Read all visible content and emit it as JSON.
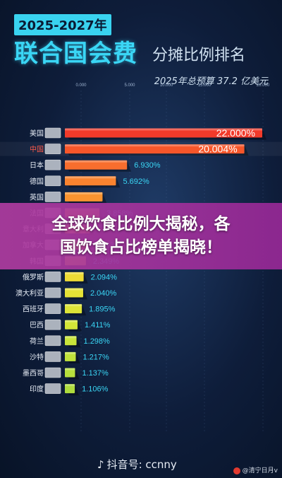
{
  "title": {
    "year": "2025-2027年",
    "main": "联合国会费",
    "sub": "分摊比例排名",
    "budget": "2025年总预算 37.2 亿美元"
  },
  "banner": {
    "line1": "全球饮食比例大揭秘，各",
    "line2": "国饮食占比榜单揭晓！"
  },
  "footer": {
    "douyin": "抖音号: ccnny",
    "weibo": "@清宁日月v"
  },
  "colors": {
    "accent": "#3ad6f5",
    "banner": "#b03ca0"
  },
  "chart_data": {
    "type": "bar",
    "orientation": "horizontal",
    "title": "联合国会费分摊比例排名",
    "x_ticks": [
      "0.000",
      "5.000",
      "10.000",
      "15.000",
      "20.000"
    ],
    "categories": [
      "美国",
      "中国",
      "日本",
      "德国",
      "英国",
      "法国",
      "意大利",
      "加拿大",
      "韩国",
      "俄罗斯",
      "澳大利亚",
      "西班牙",
      "巴西",
      "荷兰",
      "沙特",
      "墨西哥",
      "印度"
    ],
    "values": [
      22.0,
      20.004,
      6.93,
      5.692,
      4.2,
      3.858,
      2.8,
      2.543,
      2.349,
      2.094,
      2.04,
      1.895,
      1.411,
      1.298,
      1.217,
      1.137,
      1.106
    ],
    "labels": [
      "22.000%",
      "20.004%",
      "6.930%",
      "5.692%",
      "",
      "3.858%",
      "",
      "2.543%",
      "2.349%",
      "2.094%",
      "2.040%",
      "1.895%",
      "1.411%",
      "1.298%",
      "1.217%",
      "1.137%",
      "1.106%"
    ],
    "bar_colors": [
      "#f23a2a",
      "#f7562a",
      "#f86e2e",
      "#f9832f",
      "#fa9430",
      "#fba531",
      "#fbb532",
      "#fbc433",
      "#f6d034",
      "#eedb35",
      "#e5e236",
      "#dde437",
      "#d3e538",
      "#c9e43a",
      "#c0e23b",
      "#b7df3c",
      "#aedc3d"
    ],
    "xlim": [
      0,
      22
    ]
  }
}
